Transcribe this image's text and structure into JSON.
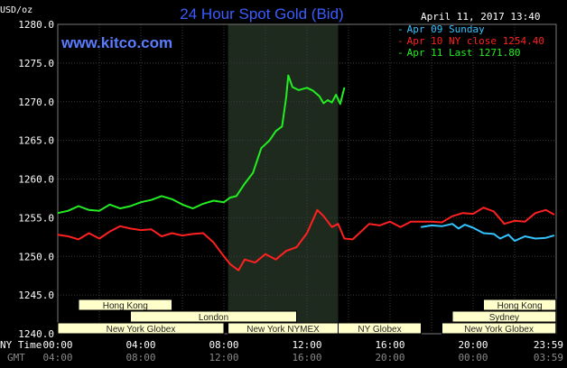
{
  "header": {
    "unit": "USD/oz",
    "title": "24 Hour Spot Gold (Bid)",
    "datetime": "April 11, 2017 13:40",
    "site": "www.kitco.com"
  },
  "legend": [
    {
      "text": "Apr 09 Sunday",
      "color": "#33c3ff"
    },
    {
      "text": "Apr 10 NY close 1254.40",
      "color": "#ff2020"
    },
    {
      "text": "Apr 11 Last 1271.80",
      "color": "#22ee22"
    }
  ],
  "axis": {
    "y_ticks": [
      "1280.0",
      "1275.0",
      "1270.0",
      "1265.0",
      "1260.0",
      "1255.0",
      "1250.0",
      "1245.0",
      "1240.0"
    ],
    "x_row1_label": "NY Time",
    "x_row1": [
      "00:00",
      "04:00",
      "08:00",
      "12:00",
      "16:00",
      "20:00",
      "23:59"
    ],
    "x_row2_label": "GMT",
    "x_row2": [
      "04:00",
      "08:00",
      "12:00",
      "16:00",
      "20:00",
      "00:00",
      "03:59"
    ]
  },
  "sessions": {
    "row1": [
      {
        "label": "Hong Kong",
        "start": 1.0,
        "end": 5.5
      },
      {
        "label": "Hong Kong",
        "start": 20.5,
        "end": 23.99
      }
    ],
    "row2": [
      {
        "label": "London",
        "start": 3.5,
        "end": 11.5
      },
      {
        "label": "Sydney",
        "start": 19.0,
        "end": 23.99
      }
    ],
    "row3": [
      {
        "label": "New York Globex",
        "start": 0.0,
        "end": 8.0
      },
      {
        "label": "New York NYMEX",
        "start": 8.2,
        "end": 13.5
      },
      {
        "label": "NY Globex",
        "start": 13.5,
        "end": 17.5
      },
      {
        "label": "New York Globex",
        "start": 18.5,
        "end": 23.99
      }
    ]
  },
  "colors": {
    "background": "#000000",
    "grid": "#3a3a3a",
    "highlight": "#1e2a1e",
    "session_box": "#ffffcc"
  },
  "chart_data": {
    "type": "line",
    "title": "24 Hour Spot Gold (Bid)",
    "ylabel": "USD/oz",
    "xlabel": "NY Time",
    "xlim": [
      0,
      24
    ],
    "ylim": [
      1240,
      1280
    ],
    "grid": true,
    "legend_position": "top-right",
    "highlight_range": [
      8.2,
      13.5
    ],
    "series": [
      {
        "name": "Apr 09 Sunday",
        "color": "#33c3ff",
        "x": [
          17.5,
          18.0,
          18.5,
          19.0,
          19.3,
          19.6,
          20.0,
          20.5,
          21.0,
          21.3,
          21.7,
          22.0,
          22.5,
          23.0,
          23.5,
          23.9
        ],
        "y": [
          1253.8,
          1254.0,
          1253.9,
          1254.2,
          1253.6,
          1254.1,
          1253.7,
          1253.0,
          1252.9,
          1252.3,
          1252.8,
          1252.0,
          1252.6,
          1252.3,
          1252.4,
          1252.7
        ]
      },
      {
        "name": "Apr 10 NY close 1254.40",
        "color": "#ff2020",
        "x": [
          0.0,
          0.5,
          1.0,
          1.5,
          2.0,
          2.5,
          3.0,
          3.5,
          4.0,
          4.5,
          5.0,
          5.5,
          6.0,
          6.5,
          7.0,
          7.5,
          8.0,
          8.3,
          8.7,
          9.0,
          9.5,
          10.0,
          10.5,
          11.0,
          11.5,
          12.0,
          12.5,
          12.8,
          13.2,
          13.5,
          13.8,
          14.2,
          14.6,
          15.0,
          15.5,
          16.0,
          16.5,
          17.0,
          17.5,
          18.0,
          18.5,
          19.0,
          19.5,
          20.0,
          20.5,
          21.0,
          21.5,
          22.0,
          22.5,
          23.0,
          23.5,
          23.9
        ],
        "y": [
          1252.8,
          1252.6,
          1252.2,
          1253.0,
          1252.3,
          1253.2,
          1253.9,
          1253.6,
          1253.4,
          1253.5,
          1252.6,
          1253.0,
          1252.7,
          1252.9,
          1253.0,
          1251.8,
          1250.0,
          1249.0,
          1248.2,
          1249.6,
          1249.2,
          1250.3,
          1249.6,
          1250.7,
          1251.2,
          1253.0,
          1256.0,
          1255.2,
          1253.8,
          1254.2,
          1252.3,
          1252.2,
          1253.2,
          1254.2,
          1254.0,
          1254.5,
          1253.8,
          1254.5,
          1254.5,
          1254.5,
          1254.4,
          1255.2,
          1255.6,
          1255.5,
          1256.3,
          1255.8,
          1254.2,
          1254.6,
          1254.5,
          1255.6,
          1256.0,
          1255.4
        ]
      },
      {
        "name": "Apr 11 Last 1271.80",
        "color": "#22ee22",
        "x": [
          0.0,
          0.5,
          1.0,
          1.5,
          2.0,
          2.5,
          3.0,
          3.5,
          4.0,
          4.5,
          5.0,
          5.5,
          6.0,
          6.5,
          7.0,
          7.5,
          8.0,
          8.3,
          8.6,
          9.0,
          9.4,
          9.8,
          10.2,
          10.5,
          10.8,
          11.0,
          11.1,
          11.3,
          11.6,
          12.0,
          12.3,
          12.6,
          12.8,
          13.0,
          13.2,
          13.4,
          13.6,
          13.8
        ],
        "y": [
          1255.6,
          1255.9,
          1256.5,
          1256.0,
          1255.9,
          1256.7,
          1256.2,
          1256.5,
          1257.0,
          1257.3,
          1257.8,
          1257.4,
          1256.7,
          1256.2,
          1256.8,
          1257.2,
          1257.0,
          1257.6,
          1257.8,
          1259.4,
          1260.8,
          1264.0,
          1265.0,
          1266.2,
          1266.8,
          1270.6,
          1273.4,
          1271.9,
          1271.5,
          1271.8,
          1271.4,
          1270.7,
          1269.8,
          1270.2,
          1269.9,
          1270.9,
          1269.7,
          1271.8
        ]
      }
    ]
  }
}
